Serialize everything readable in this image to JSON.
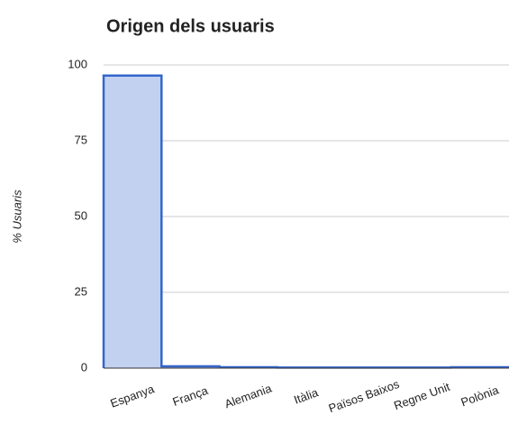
{
  "chart_data": {
    "type": "stepped-area",
    "title": "Origen dels usuaris",
    "y_label": "% Usuaris",
    "categories": [
      "Espanya",
      "França",
      "Alemania",
      "Itàlia",
      "Països Baixos",
      "Regne Unit",
      "Polònia"
    ],
    "values": [
      96.5,
      0.6,
      0.3,
      0.2,
      0.2,
      0.2,
      0.3
    ],
    "color": "#3366cc",
    "fill": "#c2d1f0",
    "ylim": [
      0,
      100
    ],
    "yticks": [
      0,
      25,
      50,
      75,
      100
    ],
    "grid": true
  }
}
